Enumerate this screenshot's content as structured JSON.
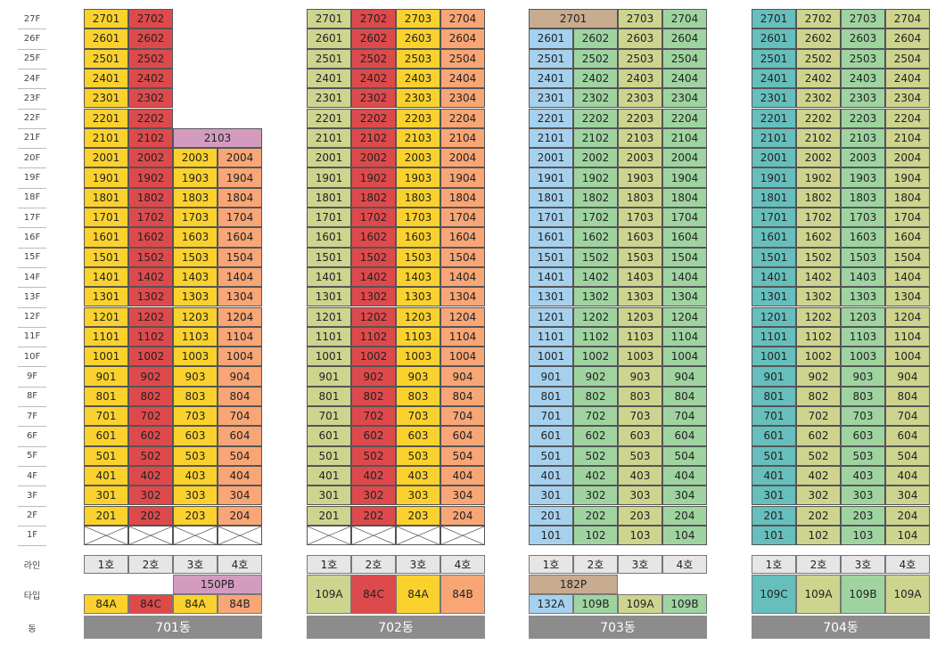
{
  "floors": [
    "1F",
    "2F",
    "3F",
    "4F",
    "5F",
    "6F",
    "7F",
    "8F",
    "9F",
    "10F",
    "11F",
    "12F",
    "13F",
    "14F",
    "15F",
    "16F",
    "17F",
    "18F",
    "19F",
    "20F",
    "21F",
    "22F",
    "23F",
    "24F",
    "25F",
    "26F",
    "27F"
  ],
  "row_labels": {
    "line": "라인",
    "type": "타입",
    "dong": "동"
  },
  "colors": {
    "84A": "#fbd22d",
    "84C": "#de4a4c",
    "84B": "#f8a676",
    "150PB": "#d39cbf",
    "109A": "#cdd48e",
    "182P": "#c8ac8f",
    "132A": "#a6d1ee",
    "109B": "#9fd4a1",
    "109C": "#66bfbd"
  },
  "buildings": [
    {
      "name": "701동",
      "lines": [
        "1호",
        "2호",
        "3호",
        "4호"
      ],
      "columns": [
        {
          "type": "84A",
          "top": 27,
          "bottom": 2,
          "pilotis": true
        },
        {
          "type": "84C",
          "top": 27,
          "bottom": 2,
          "pilotis": true
        },
        {
          "type": "84A",
          "top": 20,
          "bottom": 2,
          "pilotis": true
        },
        {
          "type": "84B",
          "top": 20,
          "bottom": 2,
          "pilotis": true
        }
      ],
      "merged_top": [
        {
          "label": "2103",
          "floor": 21,
          "from": 2,
          "to": 3,
          "type": "150PB"
        }
      ],
      "type_row": [
        {
          "label": "150PB",
          "from": 2,
          "to": 3,
          "level": "upper",
          "type": "150PB"
        },
        {
          "label": "84A",
          "from": 0,
          "to": 0,
          "level": "lower",
          "type": "84A"
        },
        {
          "label": "84C",
          "from": 1,
          "to": 1,
          "level": "lower",
          "type": "84C"
        },
        {
          "label": "84A",
          "from": 2,
          "to": 2,
          "level": "lower",
          "type": "84A"
        },
        {
          "label": "84B",
          "from": 3,
          "to": 3,
          "level": "lower",
          "type": "84B"
        }
      ]
    },
    {
      "name": "702동",
      "lines": [
        "1호",
        "2호",
        "3호",
        "4호"
      ],
      "columns": [
        {
          "type": "109A",
          "top": 27,
          "bottom": 2,
          "pilotis": true
        },
        {
          "type": "84C",
          "top": 27,
          "bottom": 2,
          "pilotis": true
        },
        {
          "type": "84A",
          "top": 27,
          "bottom": 2,
          "pilotis": true
        },
        {
          "type": "84B",
          "top": 27,
          "bottom": 2,
          "pilotis": true
        }
      ],
      "merged_top": [],
      "type_row": [
        {
          "label": "109A",
          "from": 0,
          "to": 0,
          "level": "full",
          "type": "109A"
        },
        {
          "label": "84C",
          "from": 1,
          "to": 1,
          "level": "full",
          "type": "84C"
        },
        {
          "label": "84A",
          "from": 2,
          "to": 2,
          "level": "full",
          "type": "84A"
        },
        {
          "label": "84B",
          "from": 3,
          "to": 3,
          "level": "full",
          "type": "84B"
        }
      ]
    },
    {
      "name": "703동",
      "lines": [
        "1호",
        "2호",
        "3호",
        "4호"
      ],
      "columns": [
        {
          "type": "132A",
          "top": 26,
          "bottom": 1,
          "pilotis": false
        },
        {
          "type": "109B",
          "top": 26,
          "bottom": 1,
          "pilotis": false
        },
        {
          "type": "109A",
          "top": 27,
          "bottom": 1,
          "pilotis": false
        },
        {
          "type": "109B",
          "top": 27,
          "bottom": 1,
          "pilotis": false
        }
      ],
      "merged_top": [
        {
          "label": "2701",
          "floor": 27,
          "from": 0,
          "to": 1,
          "type": "182P"
        }
      ],
      "type_row": [
        {
          "label": "182P",
          "from": 0,
          "to": 1,
          "level": "upper",
          "type": "182P"
        },
        {
          "label": "132A",
          "from": 0,
          "to": 0,
          "level": "lower",
          "type": "132A"
        },
        {
          "label": "109B",
          "from": 1,
          "to": 1,
          "level": "lower",
          "type": "109B"
        },
        {
          "label": "109A",
          "from": 2,
          "to": 2,
          "level": "lower",
          "type": "109A"
        },
        {
          "label": "109B",
          "from": 3,
          "to": 3,
          "level": "lower",
          "type": "109B"
        }
      ]
    },
    {
      "name": "704동",
      "lines": [
        "1호",
        "2호",
        "3호",
        "4호"
      ],
      "columns": [
        {
          "type": "109C",
          "top": 27,
          "bottom": 1,
          "pilotis": false
        },
        {
          "type": "109A",
          "top": 27,
          "bottom": 1,
          "pilotis": false
        },
        {
          "type": "109B",
          "top": 27,
          "bottom": 1,
          "pilotis": false
        },
        {
          "type": "109A",
          "top": 27,
          "bottom": 1,
          "pilotis": false
        }
      ],
      "merged_top": [],
      "type_row": [
        {
          "label": "109C",
          "from": 0,
          "to": 0,
          "level": "full",
          "type": "109C"
        },
        {
          "label": "109A",
          "from": 1,
          "to": 1,
          "level": "full",
          "type": "109A"
        },
        {
          "label": "109B",
          "from": 2,
          "to": 2,
          "level": "full",
          "type": "109B"
        },
        {
          "label": "109A",
          "from": 3,
          "to": 3,
          "level": "full",
          "type": "109A"
        }
      ]
    }
  ]
}
